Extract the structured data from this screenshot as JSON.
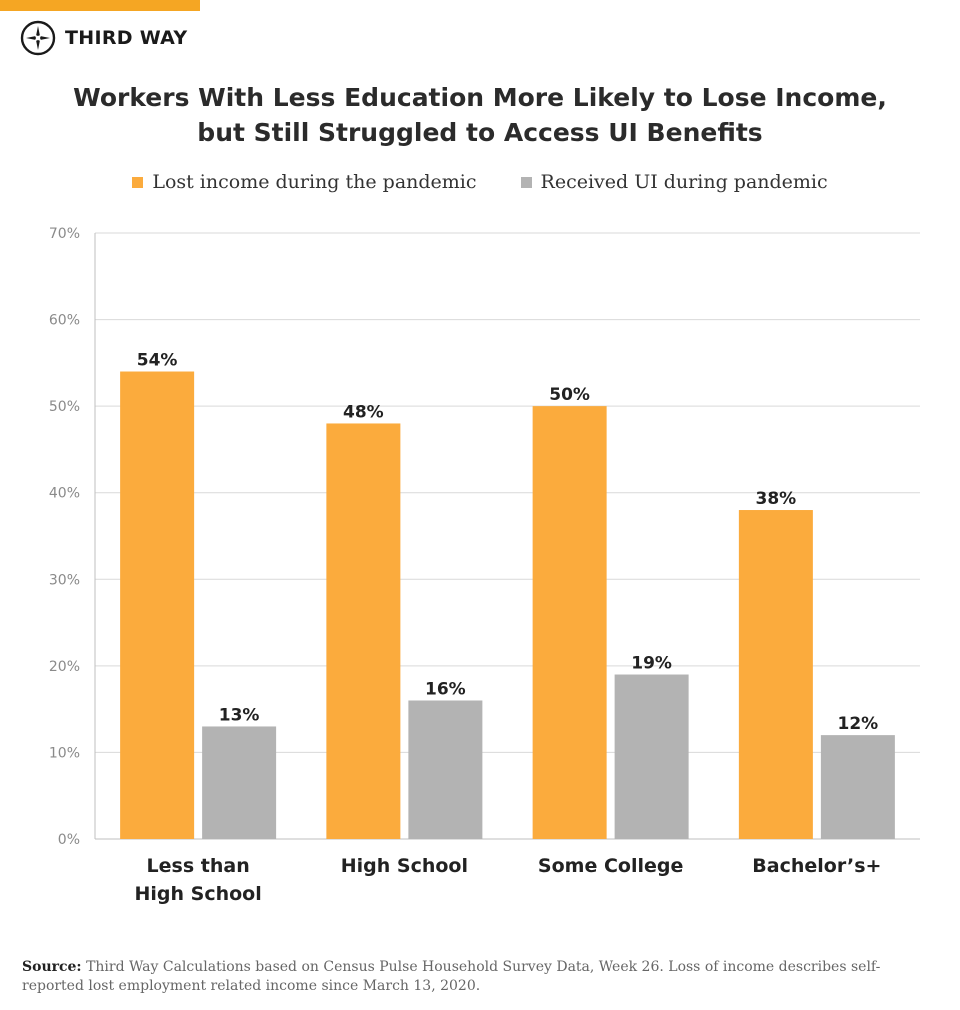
{
  "brand": {
    "name": "THIRD WAY",
    "logo_icon": "compass-star-icon"
  },
  "colors": {
    "accent": "#f5a623",
    "bar_lost": "#fbab3d",
    "bar_ui": "#b3b3b3",
    "grid": "#d9d9d9"
  },
  "chart_data": {
    "type": "bar",
    "title": "Workers With Less Education More Likely to Lose Income, but Still Struggled to Access UI Benefits",
    "title_lines": [
      "Workers With Less Education More Likely to Lose Income,",
      "but Still Struggled to Access UI Benefits"
    ],
    "categories": [
      [
        "Less than",
        "High School"
      ],
      [
        "High School"
      ],
      [
        "Some College"
      ],
      [
        "Bachelor’s+"
      ]
    ],
    "series": [
      {
        "name": "Lost income during the pandemic",
        "values": [
          54,
          48,
          50,
          38
        ],
        "labels": [
          "54%",
          "48%",
          "50%",
          "38%"
        ]
      },
      {
        "name": "Received UI during pandemic",
        "values": [
          13,
          16,
          19,
          12
        ],
        "labels": [
          "13%",
          "16%",
          "19%",
          "12%"
        ]
      }
    ],
    "ylim": [
      0,
      70
    ],
    "yticks": [
      "0%",
      "10%",
      "20%",
      "30%",
      "40%",
      "50%",
      "60%",
      "70%"
    ],
    "xlabel": "",
    "ylabel": "",
    "grid": true,
    "legend_position": "top-center"
  },
  "source": {
    "label": "Source:",
    "text": "Third Way Calculations based on Census Pulse Household Survey Data, Week 26. Loss of income describes self-reported lost employment related income since March 13, 2020."
  }
}
